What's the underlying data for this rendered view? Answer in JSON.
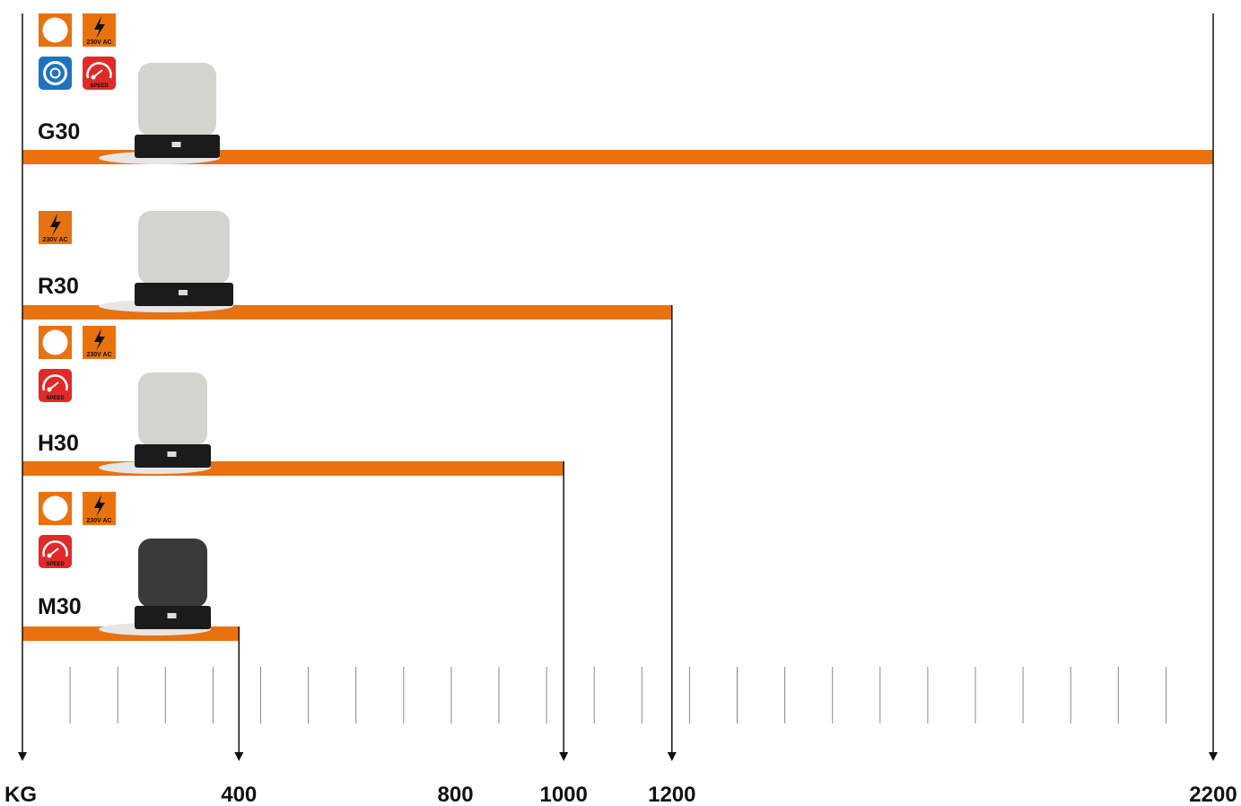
{
  "chart_data": {
    "type": "bar",
    "orientation": "horizontal",
    "xlabel": "KG",
    "tick_labels": [
      "400",
      "800",
      "1000",
      "1200",
      "2200"
    ],
    "xlim": [
      0,
      2200
    ],
    "grid": false,
    "bar_color": "#e8720f",
    "categories": [
      "G30",
      "R30",
      "H30",
      "M30"
    ],
    "values": [
      2200,
      1200,
      1000,
      400
    ],
    "badges": [
      [
        {
          "icon": "encoder-icon",
          "text": ""
        },
        {
          "icon": "lightning-icon",
          "text": "230V AC"
        },
        {
          "icon": "gear-rotation-icon",
          "text": ""
        },
        {
          "icon": "speedometer-icon",
          "text": "SPEED"
        }
      ],
      [
        {
          "icon": "lightning-icon",
          "text": "230V AC"
        }
      ],
      [
        {
          "icon": "encoder-icon",
          "text": ""
        },
        {
          "icon": "lightning-icon",
          "text": "230V AC"
        },
        {
          "icon": "speedometer-icon",
          "text": "SPEED"
        }
      ],
      [
        {
          "icon": "encoder-icon",
          "text": ""
        },
        {
          "icon": "lightning-icon",
          "text": "230V AC"
        },
        {
          "icon": "speedometer-icon",
          "text": "SPEED"
        }
      ]
    ],
    "motor_colors": [
      "#d4d4cf",
      "#d4d4cf",
      "#d4d4cf",
      "#3a3a3a"
    ]
  }
}
